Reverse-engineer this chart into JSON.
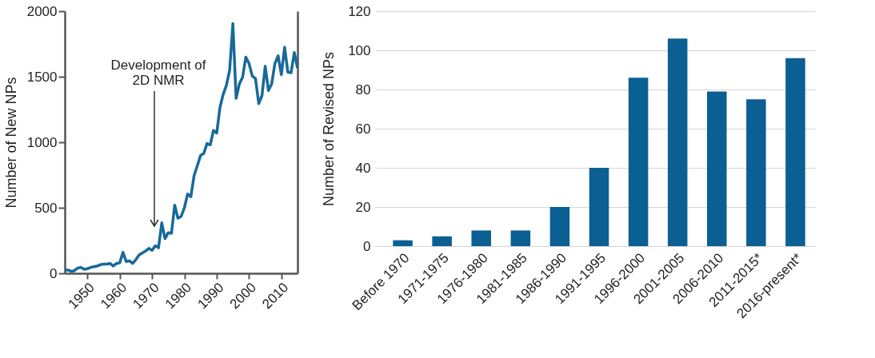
{
  "chart_data": [
    {
      "type": "line",
      "ylabel": "Number of New NPs",
      "color": "#17699b",
      "xlim": [
        1943,
        2015
      ],
      "xticks": [
        1950,
        1960,
        1970,
        1980,
        1990,
        2000,
        2010
      ],
      "ylim": [
        0,
        2000
      ],
      "yticks": [
        0,
        500,
        1000,
        1500,
        2000
      ],
      "x": [
        1943,
        1944,
        1945,
        1946,
        1947,
        1948,
        1949,
        1950,
        1951,
        1952,
        1953,
        1954,
        1955,
        1956,
        1957,
        1958,
        1959,
        1960,
        1961,
        1962,
        1963,
        1964,
        1965,
        1966,
        1967,
        1968,
        1969,
        1970,
        1971,
        1972,
        1973,
        1974,
        1975,
        1976,
        1977,
        1978,
        1979,
        1980,
        1981,
        1982,
        1983,
        1984,
        1985,
        1986,
        1987,
        1988,
        1989,
        1990,
        1991,
        1992,
        1993,
        1994,
        1995,
        1996,
        1997,
        1998,
        1999,
        2000,
        2001,
        2002,
        2003,
        2004,
        2005,
        2006,
        2007,
        2008,
        2009,
        2010,
        2011,
        2012,
        2013,
        2014,
        2015
      ],
      "values": [
        25,
        25,
        15,
        20,
        40,
        45,
        30,
        35,
        45,
        50,
        55,
        65,
        70,
        70,
        75,
        55,
        75,
        80,
        160,
        90,
        95,
        75,
        105,
        140,
        155,
        170,
        190,
        175,
        210,
        195,
        385,
        265,
        310,
        305,
        520,
        420,
        435,
        500,
        605,
        585,
        745,
        820,
        900,
        915,
        990,
        980,
        1090,
        1070,
        1265,
        1365,
        1435,
        1550,
        1905,
        1335,
        1445,
        1495,
        1650,
        1600,
        1505,
        1485,
        1295,
        1355,
        1580,
        1395,
        1445,
        1600,
        1660,
        1515,
        1725,
        1535,
        1530,
        1685,
        1565
      ],
      "annotations": [
        "Development of\n2D NMR"
      ]
    },
    {
      "type": "bar",
      "ylabel": "Number of Revised NPs",
      "color": "#0b5f93",
      "grid": "y",
      "ylim": [
        0,
        120
      ],
      "yticks": [
        0,
        20,
        40,
        60,
        80,
        100,
        120
      ],
      "categories": [
        "Before 1970",
        "1971-1975",
        "1976-1980",
        "1981-1985",
        "1986-1990",
        "1991-1995",
        "1996-2000",
        "2001-2005",
        "2006-2010",
        "2011-2015*",
        "2016-present*"
      ],
      "values": [
        3,
        5,
        8,
        8,
        20,
        40,
        86,
        106,
        79,
        75,
        96
      ]
    }
  ]
}
